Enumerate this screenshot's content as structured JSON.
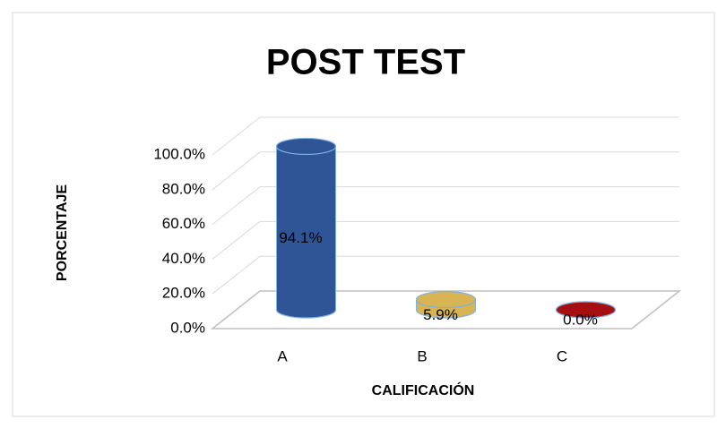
{
  "chart_data": {
    "type": "bar3d",
    "title": "POST TEST",
    "x_label": "CALIFICACIÓN",
    "y_label": "PORCENTAJE",
    "categories": [
      "A",
      "B",
      "C"
    ],
    "values": [
      94.1,
      5.9,
      0.0
    ],
    "value_labels": [
      "94.1%",
      "5.9%",
      "0.0%"
    ],
    "colors": [
      "#2f5597",
      "#d8b552",
      "#a50f0f"
    ],
    "ylim": [
      0,
      100
    ],
    "yticks": [
      {
        "value": 0,
        "label": "0.0%"
      },
      {
        "value": 20,
        "label": "20.0%"
      },
      {
        "value": 40,
        "label": "40.0%"
      },
      {
        "value": 60,
        "label": "60.0%"
      },
      {
        "value": 80,
        "label": "80.0%"
      },
      {
        "value": 100,
        "label": "100.0%"
      }
    ],
    "grid": true
  }
}
